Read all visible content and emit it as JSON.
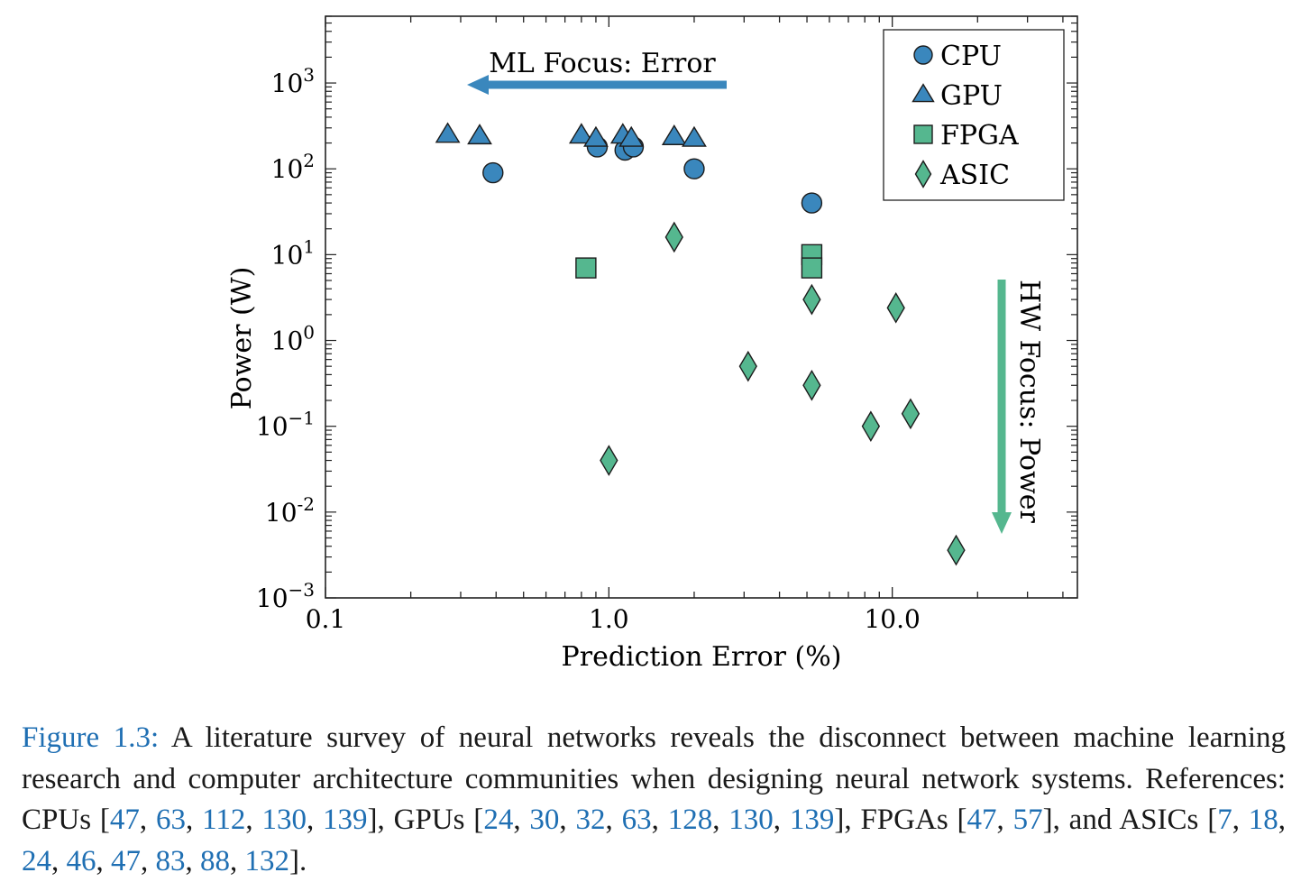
{
  "chart_data": {
    "type": "scatter",
    "xlabel": "Prediction Error (%)",
    "ylabel": "Power (W)",
    "x_scale": "log",
    "y_scale": "log",
    "xlim": [
      0.1,
      45
    ],
    "ylim": [
      0.001,
      6000
    ],
    "x_ticks": [
      "0.1",
      "1.0",
      "10.0"
    ],
    "y_ticks": [
      {
        "value": 0.001,
        "base": "10",
        "exp": "−3"
      },
      {
        "value": 0.01,
        "base": "10",
        "exp": "-2"
      },
      {
        "value": 0.1,
        "base": "10",
        "exp": "−1"
      },
      {
        "value": 1,
        "base": "10",
        "exp": "0"
      },
      {
        "value": 10,
        "base": "10",
        "exp": "1"
      },
      {
        "value": 100,
        "base": "10",
        "exp": "2"
      },
      {
        "value": 1000,
        "base": "10",
        "exp": "3"
      }
    ],
    "legend_position": "top-right",
    "series": [
      {
        "name": "CPU",
        "marker": "circle",
        "color": "#3a87bd",
        "points": [
          [
            0.39,
            90
          ],
          [
            0.91,
            180
          ],
          [
            1.14,
            165
          ],
          [
            1.22,
            180
          ],
          [
            2.0,
            100
          ],
          [
            5.2,
            40
          ]
        ]
      },
      {
        "name": "GPU",
        "marker": "triangle",
        "color": "#3a87bd",
        "points": [
          [
            0.27,
            250
          ],
          [
            0.35,
            240
          ],
          [
            0.8,
            245
          ],
          [
            0.9,
            225
          ],
          [
            1.12,
            245
          ],
          [
            1.2,
            225
          ],
          [
            1.7,
            235
          ],
          [
            2.0,
            225
          ]
        ]
      },
      {
        "name": "FPGA",
        "marker": "square",
        "color": "#55b78f",
        "points": [
          [
            0.83,
            7
          ],
          [
            5.2,
            10
          ],
          [
            5.2,
            7
          ]
        ]
      },
      {
        "name": "ASIC",
        "marker": "diamond",
        "color": "#55b78f",
        "points": [
          [
            1.0,
            0.04
          ],
          [
            1.7,
            16
          ],
          [
            3.1,
            0.5
          ],
          [
            5.2,
            3
          ],
          [
            5.2,
            0.3
          ],
          [
            8.4,
            0.1
          ],
          [
            10.3,
            2.4
          ],
          [
            11.6,
            0.14
          ],
          [
            16.8,
            0.0036
          ]
        ]
      }
    ],
    "annotations": [
      {
        "text": "ML Focus: Error",
        "arrow": "left",
        "color": "#3a87bd"
      },
      {
        "text": "HW Focus: Power",
        "arrow": "down",
        "color": "#55b78f"
      }
    ]
  },
  "caption": {
    "label": "Figure 1.3:",
    "text_1": "A literature survey of neural networks reveals the disconnect between machine learning research and computer architecture communities when designing neural network systems. References: CPUs [",
    "cpu_refs": [
      "47",
      "63",
      "112",
      "130",
      "139"
    ],
    "text_2": "], GPUs [",
    "gpu_refs": [
      "24",
      "30",
      "32",
      "63",
      "128",
      "130",
      "139"
    ],
    "text_3": "], FPGAs [",
    "fpga_refs": [
      "47",
      "57"
    ],
    "text_4": "], and ASICs [",
    "asic_refs": [
      "7",
      "18",
      "24",
      "46",
      "47",
      "83",
      "88",
      "132"
    ],
    "text_5": "]."
  }
}
